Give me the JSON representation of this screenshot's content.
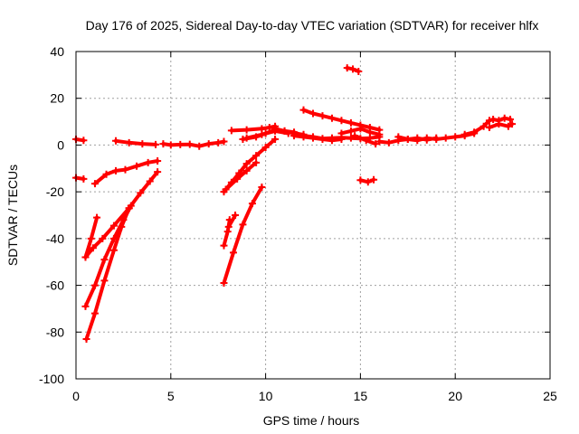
{
  "chart_data": {
    "type": "scatter",
    "title": "Day 176 of 2025, Sidereal Day-to-day VTEC variation (SDTVAR) for receiver hlfx",
    "xlabel": "GPS time / hours",
    "ylabel": "SDTVAR / TECUs",
    "xlim": [
      0,
      25
    ],
    "ylim": [
      -100,
      40
    ],
    "xticks": [
      "0",
      "5",
      "10",
      "15",
      "20",
      "25"
    ],
    "yticks": [
      "40",
      "20",
      "0",
      "-20",
      "-40",
      "-60",
      "-80",
      "-100"
    ],
    "grid": true,
    "marker_color": "#ff0000",
    "series": [
      {
        "x": [
          0.0,
          0.4
        ],
        "y": [
          2.5,
          2.0
        ]
      },
      {
        "x": [
          0.0,
          0.4
        ],
        "y": [
          -14.0,
          -14.5
        ]
      },
      {
        "x": [
          0.5,
          0.9,
          1.4,
          2.0,
          2.8,
          3.4,
          3.9,
          4.3
        ],
        "y": [
          -48.0,
          -44.0,
          -40.0,
          -34.5,
          -27.0,
          -20.5,
          -15.5,
          -11.5
        ]
      },
      {
        "x": [
          0.5,
          0.8,
          1.1
        ],
        "y": [
          -48.0,
          -40.0,
          -31.0
        ]
      },
      {
        "x": [
          0.5,
          1.0,
          1.5,
          2.0,
          2.5,
          2.9
        ],
        "y": [
          -69.0,
          -60.0,
          -49.0,
          -40.0,
          -32.0,
          -26.0
        ]
      },
      {
        "x": [
          0.55,
          1.0,
          1.5,
          2.0,
          2.4,
          2.8
        ],
        "y": [
          -83.0,
          -72.0,
          -58.0,
          -45.0,
          -35.0,
          -27.0
        ]
      },
      {
        "x": [
          1.0,
          1.6,
          2.1,
          2.6,
          3.2,
          3.8,
          4.3
        ],
        "y": [
          -16.5,
          -12.5,
          -11.0,
          -10.5,
          -9.0,
          -7.5,
          -6.8
        ]
      },
      {
        "x": [
          2.1,
          2.8,
          3.5,
          4.2
        ],
        "y": [
          1.8,
          1.0,
          0.5,
          0.2
        ]
      },
      {
        "x": [
          4.6,
          5.0,
          5.5,
          6.0,
          6.5,
          7.0,
          7.5,
          7.8
        ],
        "y": [
          0.5,
          0.0,
          0.2,
          0.3,
          -0.5,
          0.5,
          1.0,
          1.5
        ]
      },
      {
        "x": [
          7.8,
          8.0,
          8.1
        ],
        "y": [
          -43.0,
          -37.0,
          -32.0
        ]
      },
      {
        "x": [
          8.05,
          8.4
        ],
        "y": [
          -35.0,
          -30.0
        ]
      },
      {
        "x": [
          7.8,
          8.3,
          8.8,
          9.3,
          9.8
        ],
        "y": [
          -59.0,
          -46.0,
          -34.0,
          -25.0,
          -18.0
        ]
      },
      {
        "x": [
          7.8,
          8.2,
          8.6,
          9.0,
          9.5,
          10.0,
          10.5
        ],
        "y": [
          -20.0,
          -16.0,
          -12.0,
          -8.0,
          -4.5,
          -1.0,
          2.5
        ]
      },
      {
        "x": [
          7.9,
          8.5,
          9.0,
          9.5
        ],
        "y": [
          -19.0,
          -14.5,
          -11.0,
          -7.5
        ]
      },
      {
        "x": [
          8.2,
          9.0,
          9.8,
          10.2,
          10.5
        ],
        "y": [
          6.2,
          6.5,
          7.0,
          7.5,
          8.0
        ]
      },
      {
        "x": [
          8.8,
          9.5,
          10.0,
          10.5,
          11.0,
          11.5,
          12.0
        ],
        "y": [
          2.5,
          3.5,
          5.0,
          6.5,
          6.0,
          5.0,
          4.5
        ]
      },
      {
        "x": [
          9.0,
          9.8,
          10.5,
          11.2
        ],
        "y": [
          3.0,
          4.5,
          6.0,
          5.0
        ]
      },
      {
        "x": [
          10.5,
          11.0,
          11.5,
          12.0,
          12.5,
          13.0,
          13.5,
          14.0,
          14.5,
          15.0,
          15.5,
          16.0
        ],
        "y": [
          7.0,
          6.0,
          5.5,
          4.0,
          3.5,
          2.8,
          3.0,
          3.2,
          3.0,
          2.8,
          3.0,
          3.5
        ]
      },
      {
        "x": [
          12.0,
          12.5,
          13.0,
          13.5,
          14.0,
          14.5,
          15.0,
          15.5,
          16.0
        ],
        "y": [
          15.0,
          13.5,
          12.5,
          11.5,
          10.5,
          9.5,
          8.5,
          7.5,
          6.5
        ]
      },
      {
        "x": [
          11.5,
          12.0,
          12.5,
          13.0,
          13.5,
          14.0
        ],
        "y": [
          4.0,
          3.5,
          3.0,
          2.5,
          2.0,
          2.5
        ]
      },
      {
        "x": [
          14.0,
          14.5,
          15.0,
          15.5,
          16.0
        ],
        "y": [
          5.0,
          6.0,
          7.0,
          5.5,
          4.5
        ]
      },
      {
        "x": [
          14.7,
          15.3,
          15.8
        ],
        "y": [
          4.0,
          2.0,
          0.5
        ]
      },
      {
        "x": [
          14.3,
          14.6,
          14.9
        ],
        "y": [
          33.0,
          32.5,
          31.5
        ]
      },
      {
        "x": [
          15.0,
          15.4,
          15.7
        ],
        "y": [
          -15.0,
          -15.8,
          -14.8
        ]
      },
      {
        "x": [
          16.0,
          16.5,
          17.0,
          17.5,
          18.0,
          18.5,
          19.0,
          19.5,
          20.0,
          20.5,
          21.0
        ],
        "y": [
          1.5,
          1.0,
          2.0,
          2.5,
          2.0,
          3.0,
          2.5,
          3.0,
          3.5,
          4.0,
          5.0
        ]
      },
      {
        "x": [
          17.0,
          17.5,
          18.0,
          18.5,
          19.0
        ],
        "y": [
          3.5,
          2.5,
          3.0,
          2.2,
          3.0
        ]
      },
      {
        "x": [
          20.5,
          21.0,
          21.5,
          21.8,
          22.0,
          22.3,
          22.6,
          22.9
        ],
        "y": [
          4.5,
          5.5,
          8.0,
          10.5,
          11.0,
          10.5,
          11.5,
          11.0
        ]
      },
      {
        "x": [
          21.8,
          22.3,
          22.8,
          23.0
        ],
        "y": [
          7.5,
          9.0,
          8.0,
          9.0
        ]
      }
    ]
  }
}
